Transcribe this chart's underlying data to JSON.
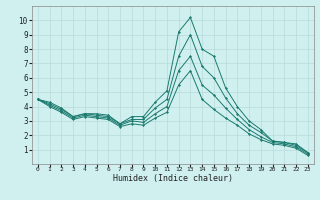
{
  "xlabel": "Humidex (Indice chaleur)",
  "x": [
    0,
    1,
    2,
    3,
    4,
    5,
    6,
    7,
    8,
    9,
    10,
    11,
    12,
    13,
    14,
    15,
    16,
    17,
    18,
    19,
    20,
    21,
    22,
    23
  ],
  "line1": [
    4.5,
    4.3,
    3.9,
    3.3,
    3.5,
    3.5,
    3.4,
    2.8,
    3.3,
    3.3,
    4.3,
    5.1,
    9.2,
    10.2,
    8.0,
    7.5,
    5.3,
    4.0,
    3.0,
    2.4,
    1.6,
    1.5,
    1.4,
    0.8
  ],
  "line2": [
    4.5,
    4.2,
    3.8,
    3.3,
    3.5,
    3.4,
    3.3,
    2.8,
    3.1,
    3.1,
    3.9,
    4.5,
    7.5,
    9.0,
    6.8,
    6.0,
    4.6,
    3.5,
    2.7,
    2.2,
    1.6,
    1.5,
    1.3,
    0.8
  ],
  "line3": [
    4.5,
    4.1,
    3.7,
    3.2,
    3.4,
    3.3,
    3.2,
    2.7,
    3.0,
    2.9,
    3.5,
    4.0,
    6.5,
    7.5,
    5.5,
    4.8,
    3.9,
    3.1,
    2.4,
    1.9,
    1.5,
    1.4,
    1.2,
    0.7
  ],
  "line4": [
    4.5,
    4.0,
    3.6,
    3.1,
    3.3,
    3.2,
    3.1,
    2.6,
    2.8,
    2.7,
    3.2,
    3.6,
    5.5,
    6.5,
    4.5,
    3.8,
    3.2,
    2.7,
    2.1,
    1.7,
    1.4,
    1.3,
    1.1,
    0.6
  ],
  "line_color": "#1a7a6e",
  "bg_color": "#d0f0f0",
  "grid_color": "#b8dada",
  "ylim": [
    0,
    11
  ],
  "xlim": [
    -0.5,
    23.5
  ],
  "yticks": [
    1,
    2,
    3,
    4,
    5,
    6,
    7,
    8,
    9,
    10
  ],
  "xticks": [
    0,
    1,
    2,
    3,
    4,
    5,
    6,
    7,
    8,
    9,
    10,
    11,
    12,
    13,
    14,
    15,
    16,
    17,
    18,
    19,
    20,
    21,
    22,
    23
  ]
}
